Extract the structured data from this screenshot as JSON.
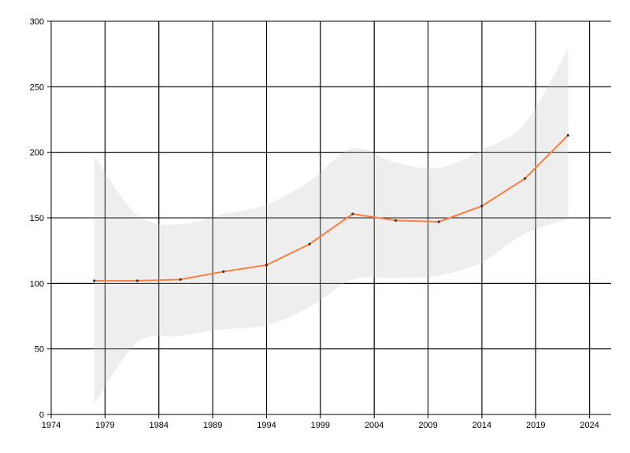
{
  "chart_data": {
    "type": "line",
    "title": "",
    "xlabel": "",
    "ylabel": "",
    "xlim": [
      1974,
      2026
    ],
    "ylim": [
      0,
      300
    ],
    "x_ticks": [
      "1974",
      "1979",
      "1984",
      "1989",
      "1994",
      "1999",
      "2004",
      "2009",
      "2014",
      "2019",
      "2024"
    ],
    "y_ticks": [
      "0",
      "50",
      "100",
      "150",
      "200",
      "250",
      "300"
    ],
    "grid": true,
    "series": [
      {
        "x": [
          1978,
          1982,
          1986,
          1990,
          1994,
          1998,
          2002,
          2006,
          2010,
          2014,
          2018,
          2022
        ],
        "values": [
          102,
          102,
          103,
          109,
          114,
          130,
          153,
          148,
          147,
          159,
          180,
          213
        ],
        "color": "#ff7f3f",
        "marker_color": "#333333"
      }
    ],
    "band": {
      "x": [
        1978,
        1982,
        1986,
        1990,
        1994,
        1998,
        2002,
        2006,
        2010,
        2014,
        2018,
        2022
      ],
      "upper": [
        197,
        152,
        145,
        153,
        160,
        178,
        203,
        192,
        188,
        202,
        222,
        279
      ],
      "lower": [
        8,
        55,
        60,
        65,
        68,
        82,
        103,
        104,
        106,
        116,
        138,
        149
      ],
      "color": "#eeeeee"
    }
  }
}
